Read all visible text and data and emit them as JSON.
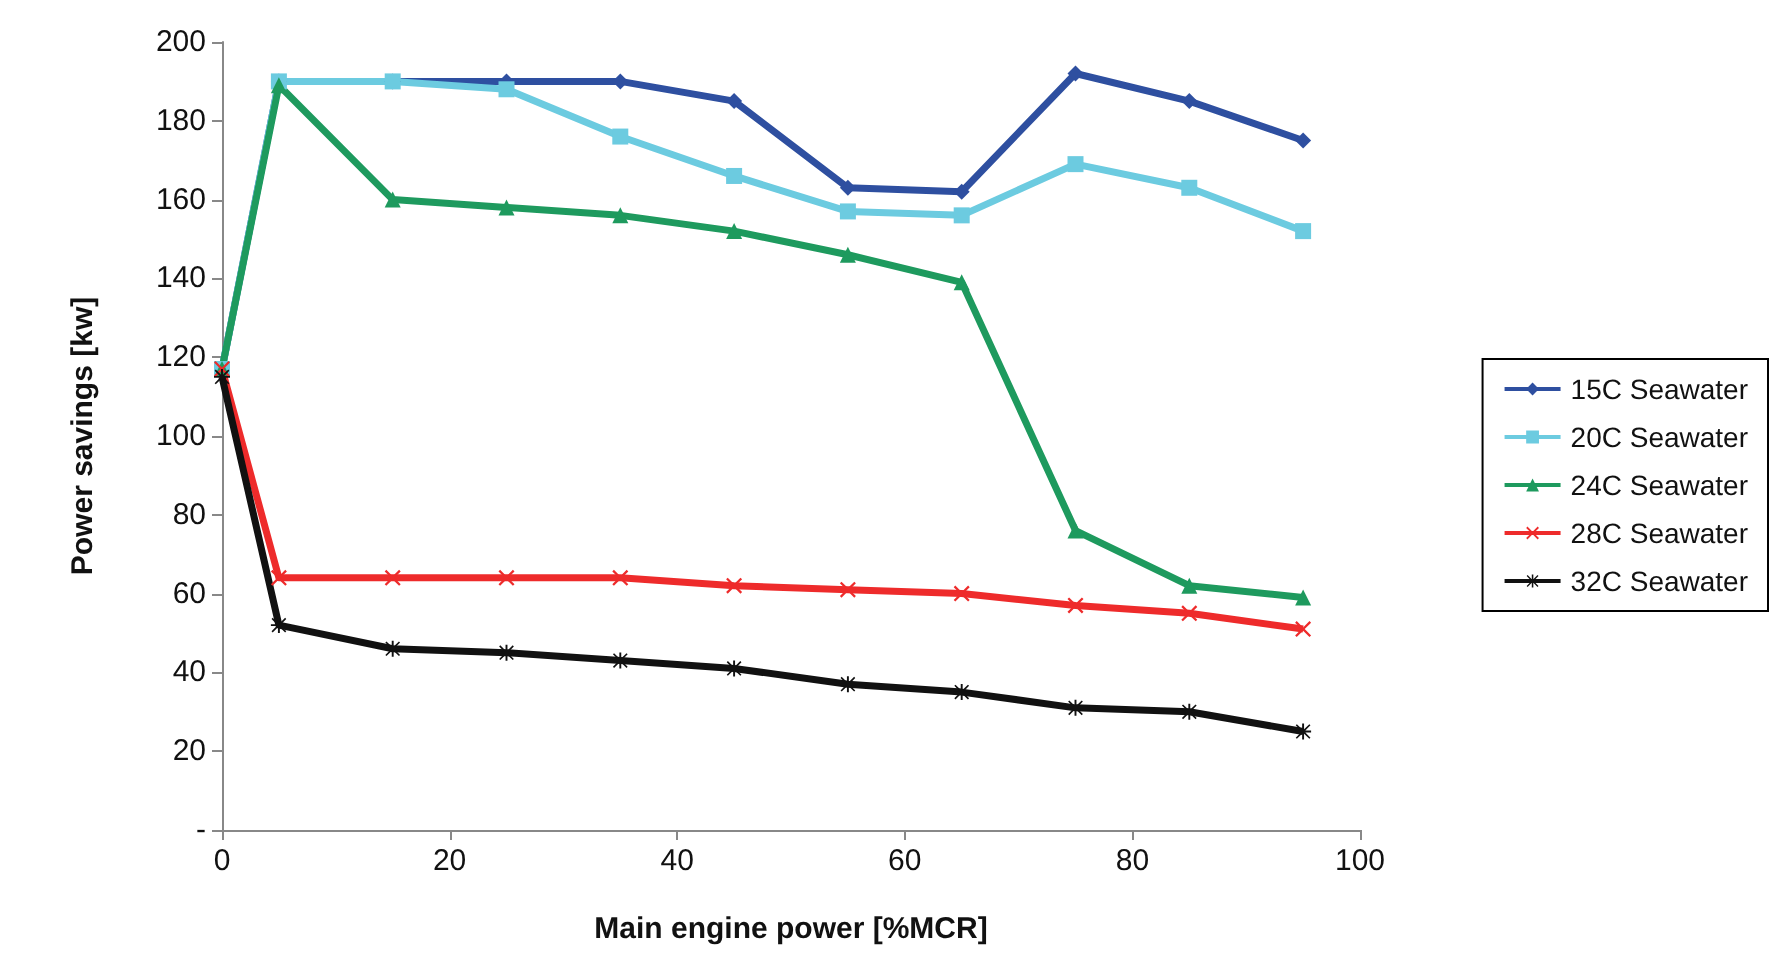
{
  "chart_data": {
    "type": "line",
    "xlabel": "Main engine power [%MCR]",
    "ylabel": "Power savings [kw]",
    "x": [
      0,
      5,
      15,
      25,
      35,
      45,
      55,
      65,
      75,
      85,
      95
    ],
    "series": [
      {
        "name": "15C Seawater",
        "color": "#2e4fa0",
        "marker": "diamond",
        "values": [
          117,
          190,
          190,
          190,
          190,
          185,
          163,
          162,
          192,
          185,
          175
        ]
      },
      {
        "name": "20C Seawater",
        "color": "#6ccbe0",
        "marker": "square",
        "values": [
          117,
          190,
          190,
          188,
          176,
          166,
          157,
          156,
          169,
          163,
          152
        ]
      },
      {
        "name": "24C Seawater",
        "color": "#1e9a5e",
        "marker": "triangle",
        "values": [
          117,
          189,
          160,
          158,
          156,
          152,
          146,
          139,
          76,
          62,
          59
        ]
      },
      {
        "name": "28C Seawater",
        "color": "#ee2b2b",
        "marker": "cross",
        "values": [
          117,
          64,
          64,
          64,
          64,
          62,
          61,
          60,
          57,
          55,
          51
        ]
      },
      {
        "name": "32C Seawater",
        "color": "#111111",
        "marker": "star",
        "values": [
          115,
          52,
          46,
          45,
          43,
          41,
          37,
          35,
          31,
          30,
          25
        ]
      }
    ],
    "xlim": [
      0,
      100
    ],
    "xticks": [
      0,
      20,
      40,
      60,
      80,
      100
    ],
    "ylim": [
      0,
      200
    ],
    "yticks": [
      {
        "value": 0,
        "label": "-"
      },
      20,
      40,
      60,
      80,
      100,
      120,
      140,
      160,
      180,
      200
    ],
    "grid": false,
    "legend": "right",
    "line_style": "solid"
  }
}
